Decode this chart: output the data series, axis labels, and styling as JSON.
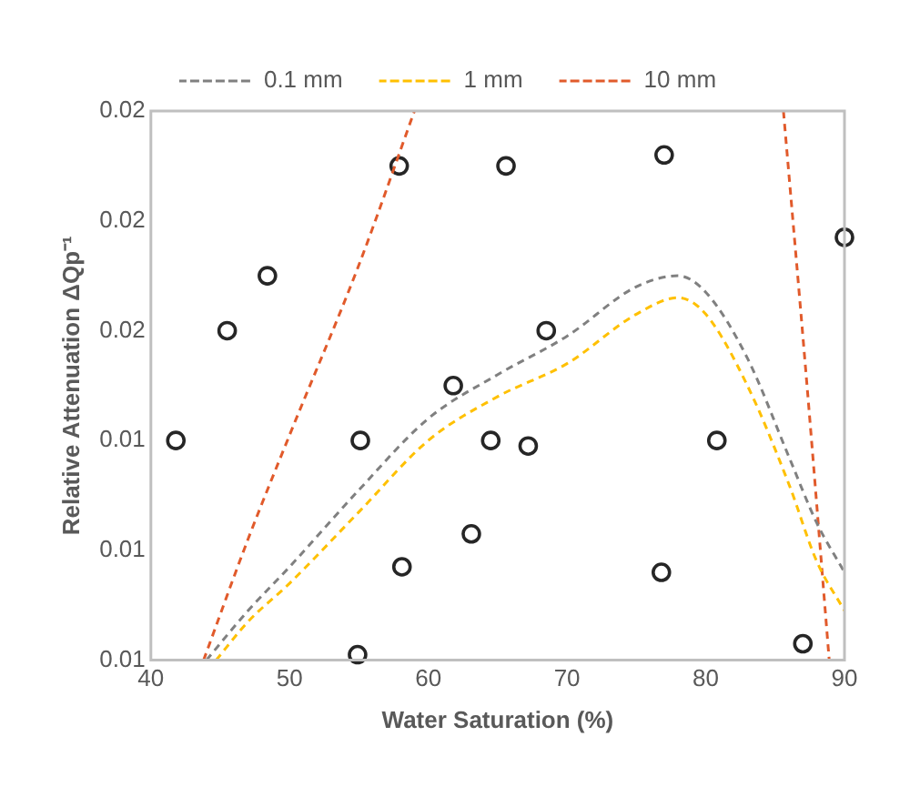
{
  "chart_data": {
    "type": "scatter",
    "xlabel": "Water Saturation (%)",
    "ylabel": "Relative Attenuation ΔQp⁻¹",
    "xlim": [
      40,
      90
    ],
    "xticks": [
      40,
      50,
      60,
      70,
      80,
      90
    ],
    "ylim": [
      0.01,
      0.02
    ],
    "yticks": [
      {
        "value": 0.01,
        "label": "0.01"
      },
      {
        "value": 0.012,
        "label": "0.01"
      },
      {
        "value": 0.014,
        "label": "0.01"
      },
      {
        "value": 0.016,
        "label": "0.02"
      },
      {
        "value": 0.018,
        "label": "0.02"
      },
      {
        "value": 0.02,
        "label": "0.02"
      }
    ],
    "legend": "top",
    "series": [
      {
        "type": "line",
        "name": "0.1 mm",
        "color": "#808080",
        "line_style": "dashed",
        "marker": "none",
        "x": [
          44,
          47,
          50,
          55,
          60,
          65,
          70,
          75,
          78,
          80,
          83,
          86,
          88,
          90
        ],
        "values": [
          0.01,
          0.0109,
          0.0117,
          0.0131,
          0.0144,
          0.0152,
          0.0159,
          0.0168,
          0.017,
          0.0167,
          0.0155,
          0.0137,
          0.0125,
          0.0116
        ]
      },
      {
        "type": "line",
        "name": "1 mm",
        "color": "#ffc000",
        "line_style": "dashed",
        "marker": "none",
        "x": [
          44.7,
          47,
          50,
          55,
          60,
          65,
          70,
          75,
          78,
          80,
          83,
          86,
          88,
          90
        ],
        "values": [
          0.01,
          0.0107,
          0.0114,
          0.0127,
          0.014,
          0.0148,
          0.0154,
          0.0163,
          0.0166,
          0.0163,
          0.015,
          0.0132,
          0.0118,
          0.0109
        ]
      },
      {
        "type": "line",
        "name": "10 mm",
        "color": "#e15a2b",
        "line_style": "dashed",
        "marker": "none",
        "x": [
          43.8,
          47,
          50,
          55,
          59,
          72,
          85.6,
          87.3,
          88.9
        ],
        "values": [
          0.01,
          0.0122,
          0.0141,
          0.0172,
          0.02,
          null,
          0.02,
          0.015,
          0.01
        ]
      },
      {
        "type": "scatter",
        "color": "#262626",
        "marker": "circle",
        "x": [
          41.8,
          45.5,
          48.4,
          57.9,
          55.1,
          58.1,
          54.9,
          65.6,
          77.0,
          90.0,
          68.5,
          61.8,
          64.5,
          67.2,
          80.8,
          63.1,
          76.8,
          87.0
        ],
        "values": [
          0.014,
          0.016,
          0.017,
          0.019,
          0.014,
          0.0117,
          0.0101,
          0.019,
          0.0192,
          0.0177,
          0.016,
          0.015,
          0.014,
          0.0139,
          0.014,
          0.0123,
          0.0116,
          0.0103
        ]
      }
    ]
  }
}
